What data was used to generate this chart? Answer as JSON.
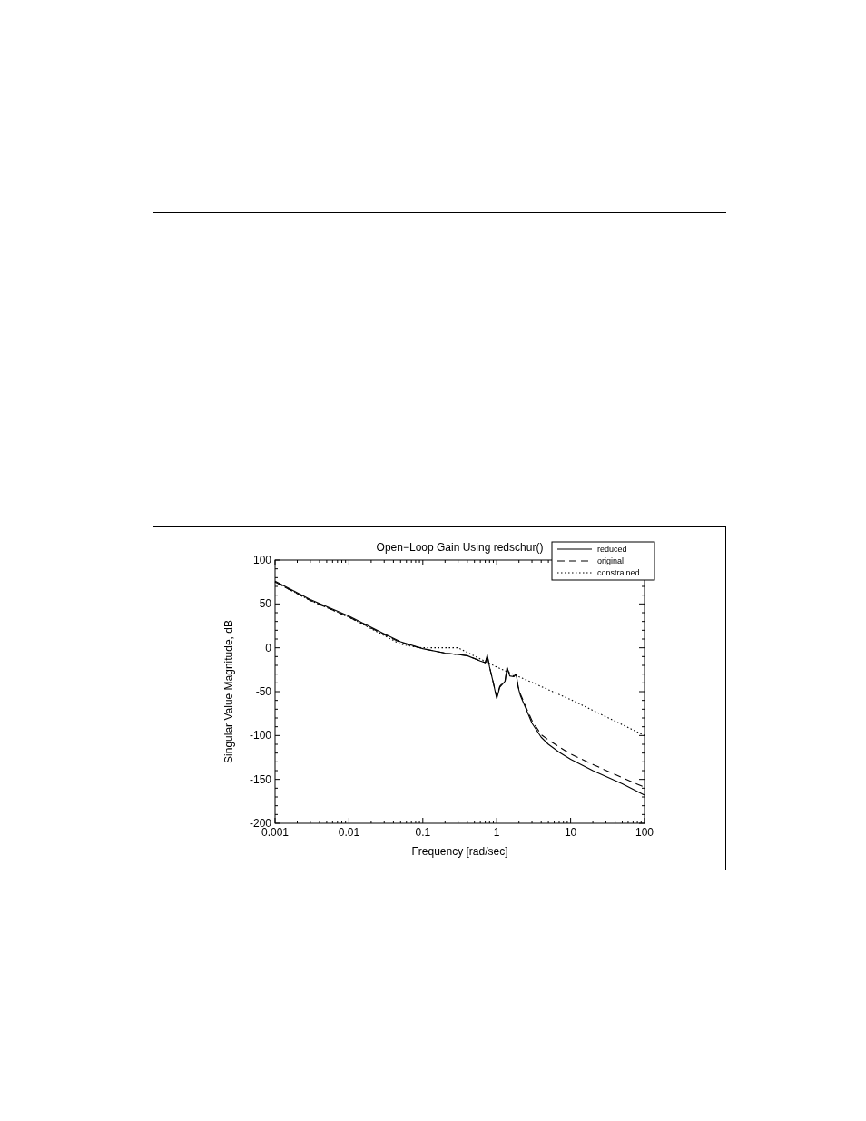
{
  "chart_data": {
    "type": "line",
    "title": "Open−Loop Gain Using redschur()",
    "xlabel": "Frequency [rad/sec]",
    "ylabel": "Singular Value Magnitude, dB",
    "log": "x",
    "xlim": [
      0.001,
      100
    ],
    "xticks": [
      0.001,
      0.01,
      0.1,
      1,
      10,
      100
    ],
    "ylim": [
      -200,
      100
    ],
    "yticks": [
      -200,
      -150,
      -100,
      -50,
      0,
      50,
      100
    ],
    "grid": false,
    "legend": "top right",
    "marker": "none",
    "series": [
      {
        "name": "reduced",
        "color": "#000000",
        "line_style": "solid",
        "x": [
          0.001,
          0.003,
          0.01,
          0.03,
          0.05,
          0.1,
          0.2,
          0.4,
          0.6,
          0.7,
          0.745,
          0.8,
          0.9,
          1.0,
          1.1,
          1.3,
          1.38,
          1.5,
          1.7,
          1.84,
          1.95,
          2.1,
          2.5,
          3,
          4,
          5,
          7,
          10,
          20,
          50,
          100
        ],
        "values": [
          76,
          55,
          36,
          16,
          7,
          -1,
          -6,
          -9,
          -15,
          -17,
          -8,
          -22,
          -40,
          -58,
          -45,
          -38,
          -22,
          -32,
          -33,
          -30,
          -45,
          -55,
          -70,
          -86,
          -102,
          -110,
          -119,
          -127,
          -140,
          -155,
          -168
        ]
      },
      {
        "name": "original",
        "color": "#000000",
        "line_style": "dashed",
        "x": [
          0.001,
          0.003,
          0.01,
          0.03,
          0.05,
          0.1,
          0.2,
          0.4,
          0.6,
          0.7,
          0.745,
          0.8,
          0.9,
          1.0,
          1.1,
          1.3,
          1.38,
          1.5,
          1.7,
          1.84,
          1.95,
          2.1,
          2.5,
          3,
          4,
          5,
          7,
          10,
          20,
          50,
          100
        ],
        "values": [
          75,
          54,
          35,
          15,
          6,
          -1,
          -6,
          -9,
          -15,
          -17,
          -9,
          -22,
          -40,
          -56,
          -44,
          -37,
          -23,
          -31,
          -32,
          -30,
          -44,
          -53,
          -68,
          -83,
          -99,
          -105,
          -113,
          -121,
          -133,
          -148,
          -159
        ]
      },
      {
        "name": "constrained",
        "color": "#000000",
        "line_style": "dotted",
        "x": [
          0.001,
          0.003,
          0.01,
          0.03,
          0.05,
          0.08,
          0.1,
          0.3,
          1,
          2,
          10,
          100
        ],
        "values": [
          75,
          54,
          35,
          14,
          4,
          1,
          0,
          0,
          -22,
          -33,
          -59,
          -100
        ]
      }
    ]
  }
}
